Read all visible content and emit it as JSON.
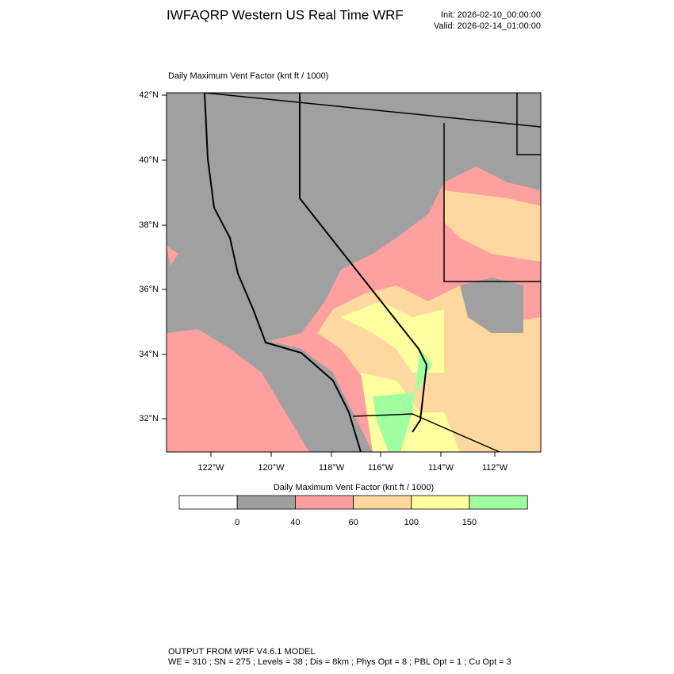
{
  "header": {
    "title": "IWFAQRP Western US Real Time WRF",
    "init": "Init: 2026-02-10_00:00:00",
    "valid": "Valid: 2026-02-14_01:00:00"
  },
  "map": {
    "title": "Daily Maximum Vent Factor   (knt ft / 1000)",
    "lat_labels": [
      "42°N",
      "40°N",
      "38°N",
      "36°N",
      "34°N",
      "32°N"
    ],
    "lon_labels": [
      "122°W",
      "120°W",
      "118°W",
      "116°W",
      "114°W",
      "112°W"
    ]
  },
  "legend": {
    "title": "Daily Maximum Vent Factor  (knt ft / 1000)",
    "colors": [
      "#ffffff",
      "#a0a0a0",
      "#ffa0a0",
      "#ffd8a0",
      "#ffffa0",
      "#a0ffa0"
    ],
    "labels": [
      "0",
      "40",
      "60",
      "100",
      "150"
    ]
  },
  "footer": {
    "line1": "OUTPUT FROM WRF V4.6.1 MODEL",
    "line2": "WE = 310 ; SN = 275 ; Levels = 38 ; Dis = 8km ; Phys Opt = 8 ; PBL Opt = 1 ; Cu Opt = 3"
  }
}
